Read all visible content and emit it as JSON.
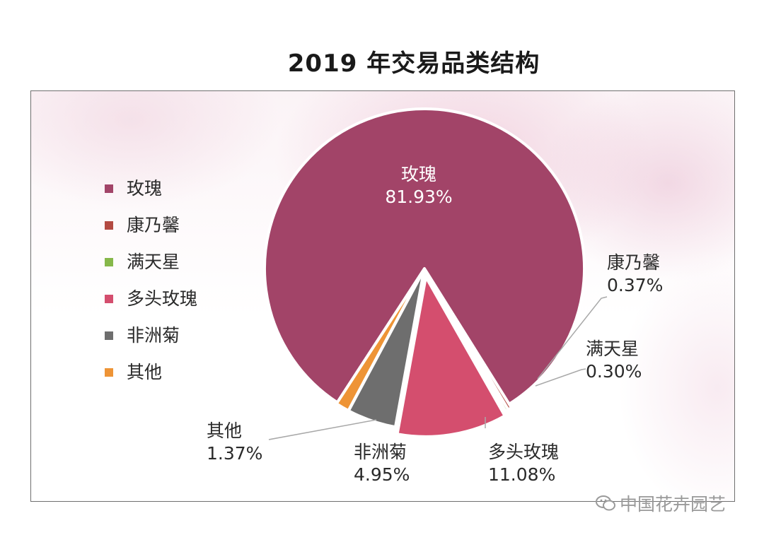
{
  "title": "2019 年交易品类结构",
  "chart_data": {
    "type": "pie",
    "title": "2019 年交易品类结构",
    "categories": [
      "玫瑰",
      "康乃馨",
      "满天星",
      "多头玫瑰",
      "非洲菊",
      "其他"
    ],
    "values": [
      81.93,
      0.37,
      0.3,
      11.08,
      4.95,
      1.37
    ],
    "labels": [
      "81.93%",
      "0.37%",
      "0.30%",
      "11.08%",
      "4.95%",
      "1.37%"
    ],
    "colors": [
      "#a24468",
      "#b34a42",
      "#86b84a",
      "#d44e6e",
      "#6e6e6e",
      "#ee9436"
    ],
    "legend_position": "left"
  },
  "legend": [
    {
      "label": "玫瑰",
      "color": "#a24468"
    },
    {
      "label": "康乃馨",
      "color": "#b34a42"
    },
    {
      "label": "满天星",
      "color": "#86b84a"
    },
    {
      "label": "多头玫瑰",
      "color": "#d44e6e"
    },
    {
      "label": "非洲菊",
      "color": "#6e6e6e"
    },
    {
      "label": "其他",
      "color": "#ee9436"
    }
  ],
  "watermark": "中国花卉园艺"
}
